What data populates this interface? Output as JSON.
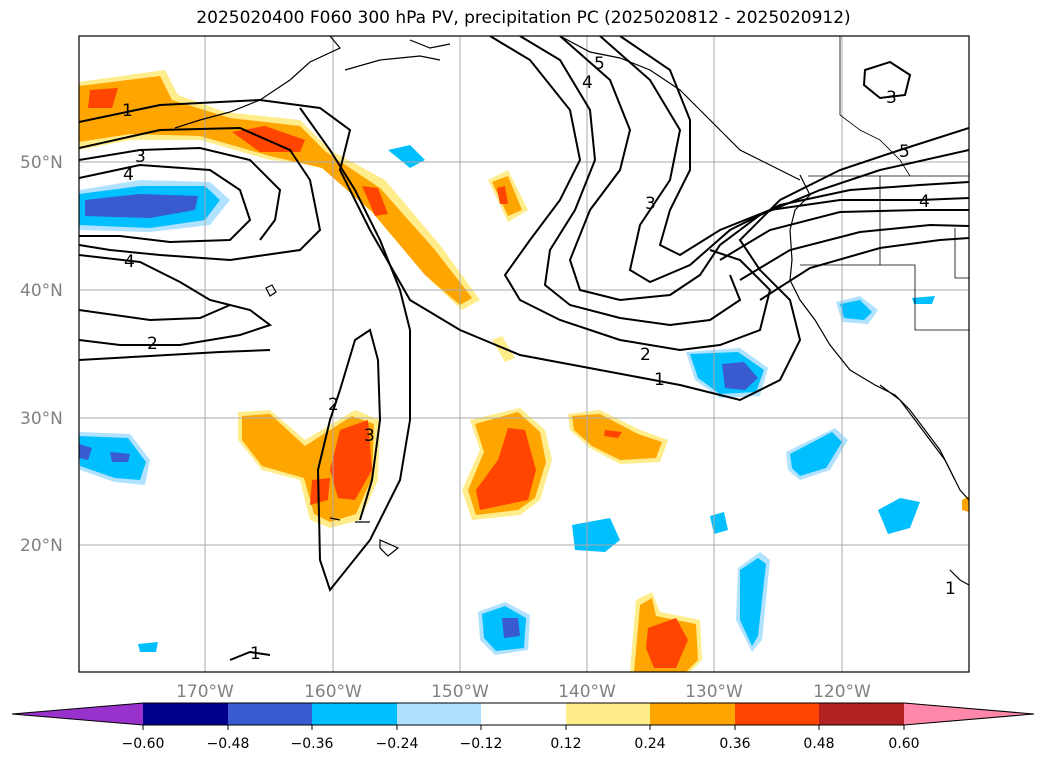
{
  "title": "2025020400 F060 300 hPa PV, precipitation PC (2025020812 - 2025020912)",
  "map": {
    "lat_labels": [
      "50°N",
      "40°N",
      "30°N",
      "20°N"
    ],
    "lon_labels": [
      "170°W",
      "160°W",
      "150°W",
      "140°W",
      "130°W",
      "120°W"
    ],
    "contour_labels": [
      "1",
      "3",
      "4",
      "4",
      "2",
      "2",
      "3",
      "5",
      "4",
      "3",
      "2",
      "1",
      "5",
      "4",
      "3",
      "1",
      "1"
    ]
  },
  "colorbar": {
    "ticks": [
      "−0.60",
      "−0.48",
      "−0.36",
      "−0.24",
      "−0.12",
      "0.12",
      "0.24",
      "0.36",
      "0.48",
      "0.60"
    ],
    "colors": [
      "#9932cc",
      "#00008b",
      "#3a5bcf",
      "#00bfff",
      "#b0e2ff",
      "#ffffff",
      "#ffec8b",
      "#ffa500",
      "#ff4500",
      "#b22222",
      "#ff88aa"
    ]
  }
}
